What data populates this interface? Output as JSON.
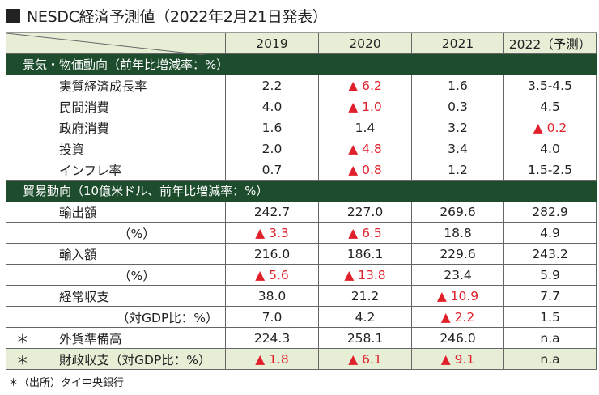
{
  "title": "NESDC経済予測値（2022年2月21日発表）",
  "columns": [
    "2019",
    "2020",
    "2021",
    "2022（予測）"
  ],
  "sections": [
    {
      "label": "景気・物価動向（前年比増減率：%）",
      "rows": [
        {
          "label": "実質経済成長率",
          "indent": 1,
          "star": "",
          "values": [
            {
              "v": "2.2",
              "neg": false
            },
            {
              "v": "▲ 6.2",
              "neg": true
            },
            {
              "v": "1.6",
              "neg": false
            },
            {
              "v": "3.5-4.5",
              "neg": false
            }
          ]
        },
        {
          "label": "民間消費",
          "indent": 1,
          "star": "",
          "values": [
            {
              "v": "4.0",
              "neg": false
            },
            {
              "v": "▲ 1.0",
              "neg": true
            },
            {
              "v": "0.3",
              "neg": false
            },
            {
              "v": "4.5",
              "neg": false
            }
          ]
        },
        {
          "label": "政府消費",
          "indent": 1,
          "star": "",
          "values": [
            {
              "v": "1.6",
              "neg": false
            },
            {
              "v": "1.4",
              "neg": false
            },
            {
              "v": "3.2",
              "neg": false
            },
            {
              "v": "▲ 0.2",
              "neg": true
            }
          ]
        },
        {
          "label": "投資",
          "indent": 1,
          "star": "",
          "values": [
            {
              "v": "2.0",
              "neg": false
            },
            {
              "v": "▲ 4.8",
              "neg": true
            },
            {
              "v": "3.4",
              "neg": false
            },
            {
              "v": "4.0",
              "neg": false
            }
          ]
        },
        {
          "label": "インフレ率",
          "indent": 1,
          "star": "",
          "values": [
            {
              "v": "0.7",
              "neg": false
            },
            {
              "v": "▲ 0.8",
              "neg": true
            },
            {
              "v": "1.2",
              "neg": false
            },
            {
              "v": "1.5-2.5",
              "neg": false
            }
          ]
        }
      ]
    },
    {
      "label": "貿易動向（10億米ドル、前年比増減率：%）",
      "rows": [
        {
          "label": "輸出額",
          "indent": 1,
          "star": "",
          "values": [
            {
              "v": "242.7",
              "neg": false
            },
            {
              "v": "227.0",
              "neg": false
            },
            {
              "v": "269.6",
              "neg": false
            },
            {
              "v": "282.9",
              "neg": false
            }
          ]
        },
        {
          "label": "（%）",
          "indent": 2,
          "star": "",
          "values": [
            {
              "v": "▲ 3.3",
              "neg": true
            },
            {
              "v": "▲ 6.5",
              "neg": true
            },
            {
              "v": "18.8",
              "neg": false
            },
            {
              "v": "4.9",
              "neg": false
            }
          ]
        },
        {
          "label": "輸入額",
          "indent": 1,
          "star": "",
          "values": [
            {
              "v": "216.0",
              "neg": false
            },
            {
              "v": "186.1",
              "neg": false
            },
            {
              "v": "229.6",
              "neg": false
            },
            {
              "v": "243.2",
              "neg": false
            }
          ]
        },
        {
          "label": "（%）",
          "indent": 2,
          "star": "",
          "values": [
            {
              "v": "▲ 5.6",
              "neg": true
            },
            {
              "v": "▲ 13.8",
              "neg": true
            },
            {
              "v": "23.4",
              "neg": false
            },
            {
              "v": "5.9",
              "neg": false
            }
          ]
        },
        {
          "label": "経常収支",
          "indent": 1,
          "star": "",
          "values": [
            {
              "v": "38.0",
              "neg": false
            },
            {
              "v": "21.2",
              "neg": false
            },
            {
              "v": "▲ 10.9",
              "neg": true
            },
            {
              "v": "7.7",
              "neg": false
            }
          ]
        },
        {
          "label": "（対GDP比：%）",
          "indent": 3,
          "star": "",
          "values": [
            {
              "v": "7.0",
              "neg": false
            },
            {
              "v": "4.2",
              "neg": false
            },
            {
              "v": "▲ 2.2",
              "neg": true
            },
            {
              "v": "1.5",
              "neg": false
            }
          ]
        },
        {
          "label": "外貨準備高",
          "indent": 1,
          "star": "＊",
          "values": [
            {
              "v": "224.3",
              "neg": false
            },
            {
              "v": "258.1",
              "neg": false
            },
            {
              "v": "246.0",
              "neg": false
            },
            {
              "v": "n.a",
              "neg": false
            }
          ]
        },
        {
          "label": "財政収支（対GDP比：%）",
          "indent": 1,
          "star": "＊",
          "highlight": true,
          "values": [
            {
              "v": "▲ 1.8",
              "neg": true
            },
            {
              "v": "▲ 6.1",
              "neg": true
            },
            {
              "v": "▲ 9.1",
              "neg": true
            },
            {
              "v": "n.a",
              "neg": false
            }
          ]
        }
      ]
    }
  ],
  "footnote": "＊（出所）タイ中央銀行",
  "colors": {
    "header_bg": "#e6efd6",
    "section_bg": "#1e4d2e",
    "negative": "#e0202a"
  }
}
